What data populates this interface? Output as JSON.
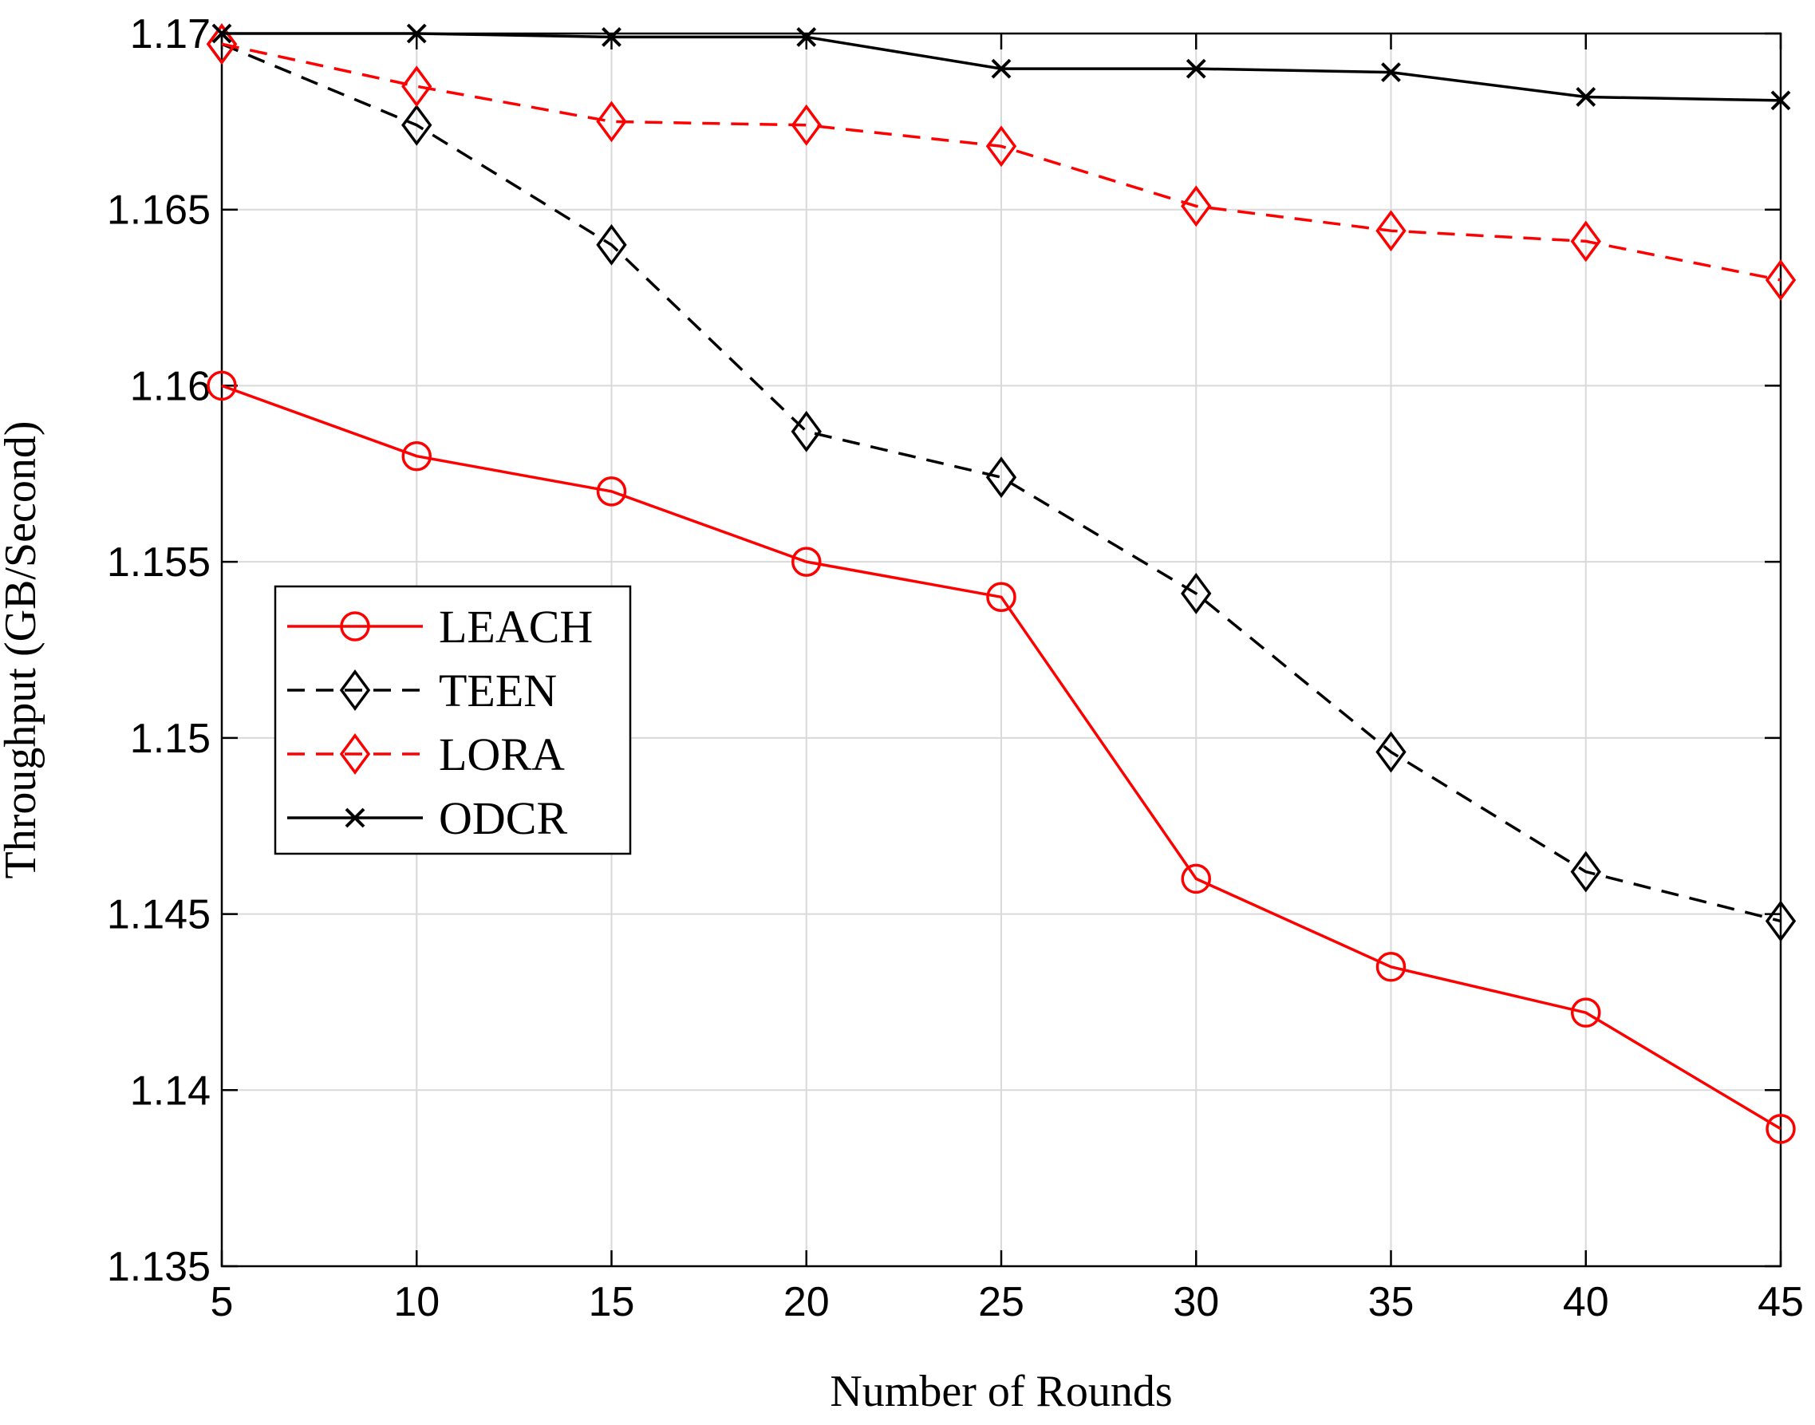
{
  "chart_data": {
    "type": "line",
    "title": "",
    "xlabel": "Number of Rounds",
    "ylabel": "Throughput (GB/Second)",
    "x": [
      5,
      10,
      15,
      20,
      25,
      30,
      35,
      40,
      45
    ],
    "xlim": [
      5,
      45
    ],
    "ylim": [
      1.135,
      1.17
    ],
    "xticks": [
      "5",
      "10",
      "15",
      "20",
      "25",
      "30",
      "35",
      "40",
      "45"
    ],
    "yticks": [
      "1.135",
      "1.14",
      "1.145",
      "1.15",
      "1.155",
      "1.16",
      "1.165",
      "1.17"
    ],
    "grid": true,
    "legend_position": "center-left",
    "series": [
      {
        "name": "LEACH",
        "values": [
          1.16,
          1.158,
          1.157,
          1.155,
          1.154,
          1.146,
          1.1435,
          1.1422,
          1.1389
        ],
        "color": "#ff0000",
        "line_style": "solid",
        "marker": "circle"
      },
      {
        "name": "TEEN",
        "values": [
          1.1697,
          1.1674,
          1.164,
          1.1587,
          1.1574,
          1.1541,
          1.1496,
          1.1462,
          1.1448
        ],
        "color": "#000000",
        "line_style": "dashed",
        "marker": "diamond"
      },
      {
        "name": "LORA",
        "values": [
          1.1697,
          1.1685,
          1.1675,
          1.1674,
          1.1668,
          1.1651,
          1.1644,
          1.1641,
          1.163
        ],
        "color": "#ff0000",
        "line_style": "dashed",
        "marker": "diamond"
      },
      {
        "name": "ODCR",
        "values": [
          1.17,
          1.17,
          1.1699,
          1.1699,
          1.169,
          1.169,
          1.1689,
          1.1682,
          1.1681
        ],
        "color": "#000000",
        "line_style": "solid",
        "marker": "x"
      }
    ]
  }
}
